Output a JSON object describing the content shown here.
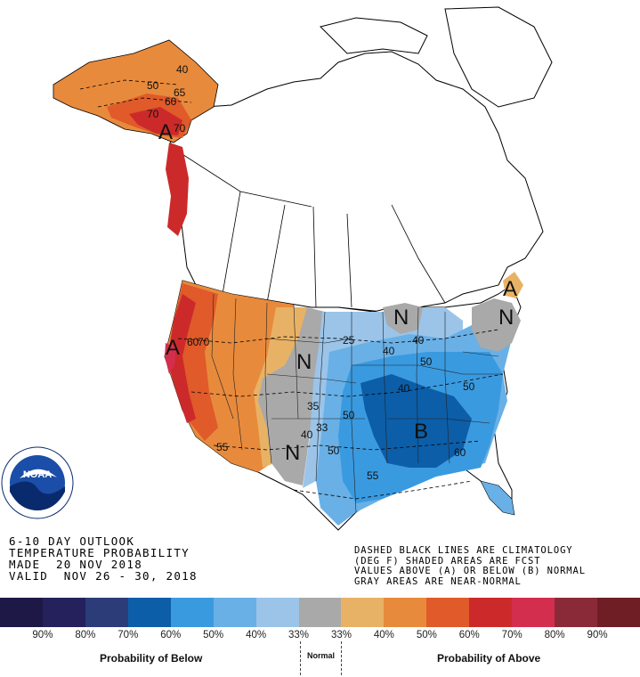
{
  "title_lines": [
    "6-10 DAY OUTLOOK",
    "TEMPERATURE PROBABILITY",
    "MADE  20 NOV 2018",
    "VALID  NOV 26 - 30, 2018"
  ],
  "notes": [
    "DASHED BLACK LINES ARE CLIMATOLOGY",
    "(DEG F) SHADED AREAS ARE FCST",
    "VALUES ABOVE (A) OR BELOW (B) NORMAL",
    "GRAY AREAS ARE NEAR-NORMAL"
  ],
  "logo_text": "NOAA",
  "legend": {
    "below_caption": "Probability of Below",
    "normal_caption": "Normal",
    "above_caption": "Probability of Above",
    "labels": [
      "90%",
      "80%",
      "70%",
      "60%",
      "50%",
      "40%",
      "33%",
      "33%",
      "40%",
      "50%",
      "60%",
      "70%",
      "80%",
      "90%"
    ],
    "colors": [
      "#1e1847",
      "#24215c",
      "#2c3c78",
      "#0c5ea8",
      "#3a9ae0",
      "#69b0e6",
      "#9bc4e8",
      "#a9a9a9",
      "#e8b266",
      "#e88a3c",
      "#e05a2a",
      "#cc2a2a",
      "#d42e4e",
      "#8a2a38",
      "#6e1e24"
    ]
  },
  "map": {
    "region_labels": [
      "A",
      "A",
      "A",
      "N",
      "N",
      "N",
      "N",
      "B"
    ],
    "contour_labels": [
      "40",
      "50",
      "65",
      "60",
      "70",
      "70",
      "60",
      "70",
      "55",
      "25",
      "40",
      "50",
      "40",
      "35",
      "50",
      "33",
      "40",
      "50",
      "60",
      "40",
      "50",
      "55"
    ],
    "region_colors": {
      "above_40": "#e8b266",
      "above_50": "#e88a3c",
      "above_60": "#e05a2a",
      "above_70": "#cc2a2a",
      "above_80": "#d42e4e",
      "near_normal": "#a9a9a9",
      "below_33": "#9bc4e8",
      "below_40": "#69b0e6",
      "below_50": "#3a9ae0",
      "below_60": "#0c5ea8"
    }
  }
}
